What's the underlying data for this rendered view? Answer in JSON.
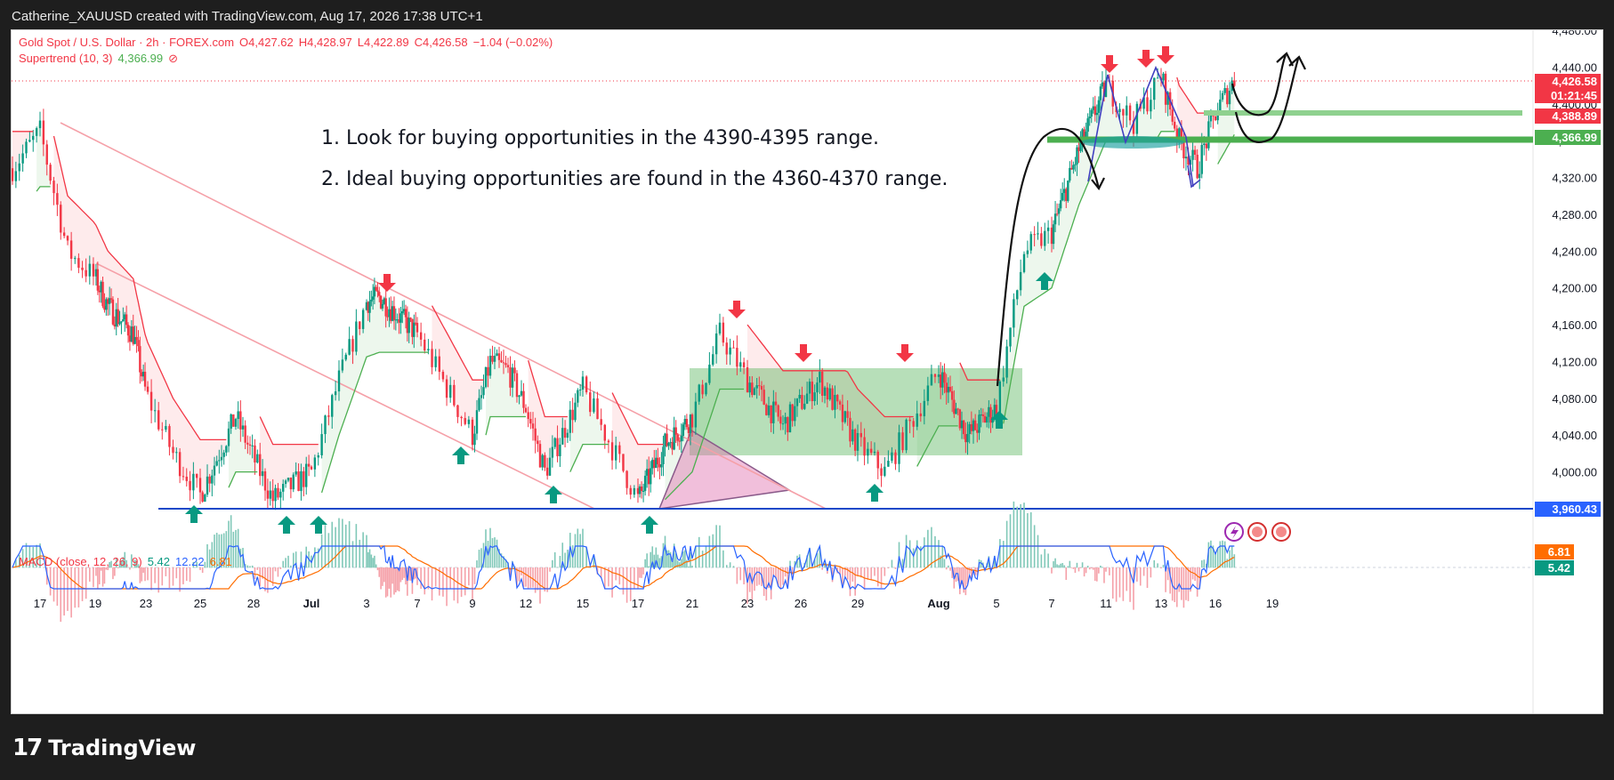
{
  "top_bar": {
    "text": "Catherine_XAUUSD created with TradingView.com, Aug 17, 2026 17:38 UTC+1"
  },
  "legend": {
    "symbol": "Gold Spot / U.S. Dollar · 2h · FOREX.com",
    "open": "O4,427.62",
    "high": "H4,428.97",
    "low": "L4,422.89",
    "close": "C4,426.58",
    "change": "−1.04 (−0.02%)",
    "indicator": "Supertrend (10, 3)",
    "indicator_value": "4,366.99",
    "indicator_icon": "eye-off-icon"
  },
  "macd": {
    "label": "MACD (close, 12, 26, 9)",
    "v1": "5.42",
    "v2": "12.22",
    "v3": "6.81",
    "badge_signal": "6.81",
    "badge_macd": "5.42"
  },
  "notes": [
    "1. Look for buying opportunities in the 4390-4395 range.",
    "2. Ideal buying opportunities are found in the 4360-4370 range."
  ],
  "price_badges": [
    {
      "value": "4,426.58",
      "color": "#f23645"
    },
    {
      "value": "01:21:45",
      "color": "#f23645"
    },
    {
      "value": "4,388.89",
      "color": "#f23645"
    },
    {
      "value": "4,366.99",
      "color": "#4caf50"
    },
    {
      "value": "3,960.43",
      "color": "#2962ff"
    }
  ],
  "colors": {
    "up": "#089981",
    "down": "#f23645",
    "supertrend_up": "#4caf50",
    "supertrend_down": "#f23645",
    "support_line": "#1848c8",
    "zone": "#4caf50",
    "macd": "#2962ff",
    "signal": "#ff6d00",
    "triangle": "#e070b0"
  },
  "branding": {
    "name": "TradingView",
    "icon": "tradingview-logo"
  },
  "chart_data": {
    "type": "candlestick",
    "title": "Gold Spot / U.S. Dollar · 2h · FOREX.com",
    "x_ticks": [
      "17",
      "19",
      "23",
      "25",
      "28",
      "Jul",
      "3",
      "7",
      "9",
      "12",
      "15",
      "17",
      "21",
      "23",
      "26",
      "29",
      "Aug",
      "5",
      "7",
      "11",
      "13",
      "16",
      "19"
    ],
    "y_ticks": [
      "4,480.00",
      "4,440.00",
      "4,400.00",
      "4,360.00",
      "4,320.00",
      "4,280.00",
      "4,240.00",
      "4,200.00",
      "4,160.00",
      "4,120.00",
      "4,080.00",
      "4,040.00",
      "4,000.00",
      "3,960.00"
    ],
    "ylim": [
      3940,
      4488
    ],
    "price_path": [
      [
        "Jun 16",
        4330
      ],
      [
        "Jun 17",
        4370
      ],
      [
        "Jun 18",
        4240
      ],
      [
        "Jun 20",
        4180
      ],
      [
        "Jun 22",
        4150
      ],
      [
        "Jun 24",
        4020
      ],
      [
        "Jun 25",
        3975
      ],
      [
        "Jun 27",
        4060
      ],
      [
        "Jun 29",
        3970
      ],
      [
        "Jul 1",
        4000
      ],
      [
        "Jul 2",
        4100
      ],
      [
        "Jul 3",
        4185
      ],
      [
        "Jul 4",
        4190
      ],
      [
        "Jul 7",
        4150
      ],
      [
        "Jul 9",
        4040
      ],
      [
        "Jul 10",
        4120
      ],
      [
        "Jul 11",
        4110
      ],
      [
        "Jul 12",
        4070
      ],
      [
        "Jul 13",
        4000
      ],
      [
        "Jul 15",
        4090
      ],
      [
        "Jul 17",
        3970
      ],
      [
        "Jul 19",
        4030
      ],
      [
        "Jul 21",
        4060
      ],
      [
        "Jul 22",
        4150
      ],
      [
        "Jul 23",
        4100
      ],
      [
        "Jul 25",
        4050
      ],
      [
        "Jul 27",
        4100
      ],
      [
        "Jul 29",
        4030
      ],
      [
        "Jul 30",
        4000
      ],
      [
        "Aug 1",
        4110
      ],
      [
        "Aug 3",
        4040
      ],
      [
        "Aug 5",
        4070
      ],
      [
        "Aug 6",
        4240
      ],
      [
        "Aug 7",
        4260
      ],
      [
        "Aug 9",
        4350
      ],
      [
        "Aug 11",
        4420
      ],
      [
        "Aug 12",
        4380
      ],
      [
        "Aug 13",
        4430
      ],
      [
        "Aug 14",
        4360
      ],
      [
        "Aug 15",
        4330
      ],
      [
        "Aug 16",
        4390
      ],
      [
        "Aug 17",
        4426.58
      ]
    ],
    "support_level": 3960.43,
    "zone": {
      "from": "Jul 20",
      "to": "Aug 5",
      "low": 4020,
      "high": 4115
    },
    "macd_value": 5.42,
    "signal_value": 6.81,
    "histogram_value": 12.22
  }
}
